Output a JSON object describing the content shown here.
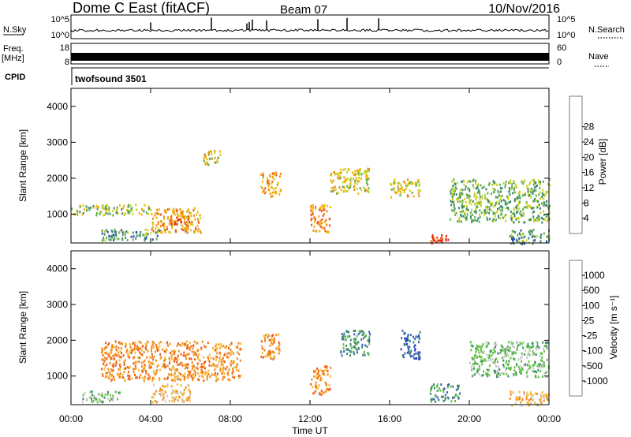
{
  "header": {
    "title": "Dome C East (fitACF)",
    "beam": "Beam 07",
    "date": "10/Nov/2016"
  },
  "panels": {
    "nsky": {
      "label": "N.Sky",
      "right_label": "N.Search",
      "ticks_left": [
        "10^5",
        "10^0"
      ],
      "ticks_right": [
        "10^5",
        "10^0"
      ]
    },
    "freq": {
      "label_top": "Freq.",
      "label_unit": "[MHz]",
      "right_label": "Nave",
      "ticks_left": [
        "18",
        "8"
      ],
      "ticks_right": [
        "60",
        "0"
      ]
    },
    "cpid": {
      "label": "CPID",
      "program": "twofsound 3501"
    }
  },
  "colors": {
    "power": [
      "#1414ff",
      "#2a4aa8",
      "#3c8a6e",
      "#5fae4a",
      "#c8d020",
      "#f4b200",
      "#f08a18",
      "#f05a18",
      "#e82010"
    ],
    "velocity": [
      "#f01010",
      "#f05a10",
      "#f08a20",
      "#f8b830",
      "#c8c8c8",
      "#60c040",
      "#3c8a6e",
      "#3c64b4",
      "#1e3cc8"
    ]
  },
  "chart_data": [
    {
      "type": "heatmap",
      "name": "power",
      "ylabel": "Slant Range [km]",
      "yticks": [
        "1000",
        "2000",
        "3000",
        "4000"
      ],
      "ylim": [
        200,
        4500
      ],
      "xlim": [
        0,
        24
      ],
      "colorbar": {
        "label": "Power [dB]",
        "range": [
          0,
          32
        ],
        "ticks": [
          "4",
          "8",
          "12",
          "16",
          "20",
          "24",
          "28"
        ]
      },
      "echo_regions": [
        {
          "x": [
            0,
            4
          ],
          "y": [
            1000,
            1300
          ],
          "value": 14
        },
        {
          "x": [
            1.5,
            4.5
          ],
          "y": [
            300,
            600
          ],
          "value": 10
        },
        {
          "x": [
            4,
            6.5
          ],
          "y": [
            500,
            1200
          ],
          "value": 22
        },
        {
          "x": [
            5,
            6
          ],
          "y": [
            700,
            1000
          ],
          "value": 28
        },
        {
          "x": [
            6.5,
            7.5
          ],
          "y": [
            2400,
            2800
          ],
          "value": 18
        },
        {
          "x": [
            9.5,
            10.5
          ],
          "y": [
            1500,
            2200
          ],
          "value": 22
        },
        {
          "x": [
            12,
            13
          ],
          "y": [
            500,
            1300
          ],
          "value": 24
        },
        {
          "x": [
            13,
            15
          ],
          "y": [
            1600,
            2300
          ],
          "value": 18
        },
        {
          "x": [
            16,
            17.5
          ],
          "y": [
            1500,
            2000
          ],
          "value": 18
        },
        {
          "x": [
            18,
            19
          ],
          "y": [
            200,
            500
          ],
          "value": 30
        },
        {
          "x": [
            19,
            24
          ],
          "y": [
            800,
            2000
          ],
          "value": 12
        },
        {
          "x": [
            22,
            24
          ],
          "y": [
            200,
            600
          ],
          "value": 10
        }
      ]
    },
    {
      "type": "heatmap",
      "name": "velocity",
      "ylabel": "Slant Range [km]",
      "yticks": [
        "1000",
        "2000",
        "3000",
        "4000"
      ],
      "ylim": [
        200,
        4500
      ],
      "xlim": [
        0,
        24
      ],
      "xlabel": "Time UT",
      "xticks": [
        "00:00",
        "04:00",
        "08:00",
        "12:00",
        "16:00",
        "20:00",
        "00:00"
      ],
      "colorbar": {
        "label": "Velocity [m s⁻¹]",
        "ticks": [
          "-1000",
          "-500",
          "-100",
          "-25",
          "25",
          "100",
          "500",
          "1000"
        ]
      },
      "echo_regions": [
        {
          "x": [
            1.5,
            8.5
          ],
          "y": [
            900,
            2000
          ],
          "value": -100
        },
        {
          "x": [
            4,
            6
          ],
          "y": [
            300,
            800
          ],
          "value": -60
        },
        {
          "x": [
            0.5,
            2.5
          ],
          "y": [
            300,
            600
          ],
          "value": 100
        },
        {
          "x": [
            9.5,
            10.5
          ],
          "y": [
            1500,
            2200
          ],
          "value": -400
        },
        {
          "x": [
            12,
            13
          ],
          "y": [
            500,
            1300
          ],
          "value": -100
        },
        {
          "x": [
            13.5,
            15
          ],
          "y": [
            1600,
            2300
          ],
          "value": 200
        },
        {
          "x": [
            16.5,
            17.5
          ],
          "y": [
            1500,
            2300
          ],
          "value": 600
        },
        {
          "x": [
            18,
            19.5
          ],
          "y": [
            300,
            800
          ],
          "value": 150
        },
        {
          "x": [
            20,
            24
          ],
          "y": [
            1000,
            2000
          ],
          "value": 80
        },
        {
          "x": [
            22,
            24
          ],
          "y": [
            200,
            600
          ],
          "value": -25
        }
      ]
    }
  ]
}
